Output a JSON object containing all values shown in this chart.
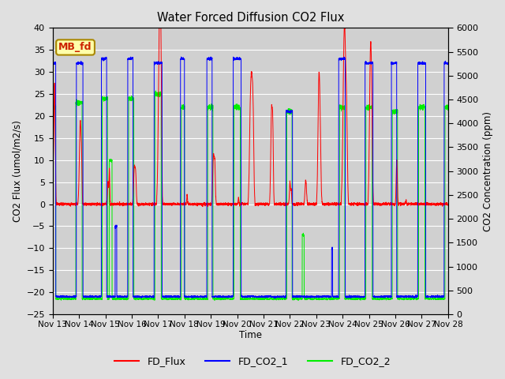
{
  "title": "Water Forced Diffusion CO2 Flux",
  "ylabel_left": "CO2 Flux (umol/m2/s)",
  "ylabel_right": "CO2 Concentration (ppm)",
  "xlabel": "Time",
  "ylim_left": [
    -25,
    40
  ],
  "ylim_right": [
    0,
    6000
  ],
  "yticks_left": [
    -25,
    -20,
    -15,
    -10,
    -5,
    0,
    5,
    10,
    15,
    20,
    25,
    30,
    35,
    40
  ],
  "yticks_right": [
    0,
    500,
    1000,
    1500,
    2000,
    2500,
    3000,
    3500,
    4000,
    4500,
    5000,
    5500,
    6000
  ],
  "xtick_labels": [
    "Nov 13",
    "Nov 14",
    "Nov 15",
    "Nov 16",
    "Nov 17",
    "Nov 18",
    "Nov 19",
    "Nov 20",
    "Nov 21",
    "Nov 22",
    "Nov 23",
    "Nov 24",
    "Nov 25",
    "Nov 26",
    "Nov 27",
    "Nov 28"
  ],
  "fig_bg_color": "#e0e0e0",
  "plot_bg_color": "#d0d0d0",
  "annotation_text": "MB_fd",
  "annotation_color": "#cc2200",
  "annotation_bg": "#ffffaa",
  "annotation_edge": "#aa8800",
  "fd_flux_color": "red",
  "fd_co2_1_color": "blue",
  "fd_co2_2_color": "#00ee00",
  "legend_labels": [
    "FD_Flux",
    "FD_CO2_1",
    "FD_CO2_2"
  ],
  "grid_color": "white",
  "right_tick_style": "dotted"
}
